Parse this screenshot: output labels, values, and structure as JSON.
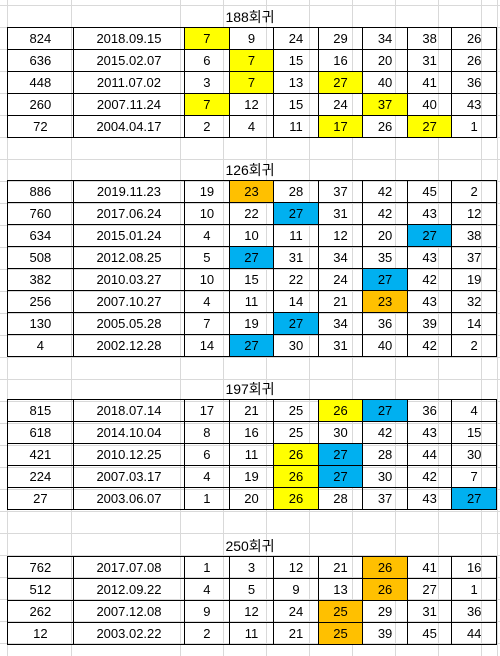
{
  "colors": {
    "yellow": "#ffff00",
    "orange": "#ffc000",
    "blue": "#00b0f0"
  },
  "blocks": [
    {
      "title": "188회귀",
      "rows": [
        {
          "round": "824",
          "date": "2018.09.15",
          "nums": [
            "7",
            "9",
            "24",
            "29",
            "34",
            "38",
            "26"
          ],
          "hl": [
            "yellow",
            "",
            "",
            "",
            "",
            "",
            ""
          ]
        },
        {
          "round": "636",
          "date": "2015.02.07",
          "nums": [
            "6",
            "7",
            "15",
            "16",
            "20",
            "31",
            "26"
          ],
          "hl": [
            "",
            "yellow",
            "",
            "",
            "",
            "",
            ""
          ]
        },
        {
          "round": "448",
          "date": "2011.07.02",
          "nums": [
            "3",
            "7",
            "13",
            "27",
            "40",
            "41",
            "36"
          ],
          "hl": [
            "",
            "yellow",
            "",
            "yellow",
            "",
            "",
            ""
          ]
        },
        {
          "round": "260",
          "date": "2007.11.24",
          "nums": [
            "7",
            "12",
            "15",
            "24",
            "37",
            "40",
            "43"
          ],
          "hl": [
            "yellow",
            "",
            "",
            "",
            "yellow",
            "",
            ""
          ]
        },
        {
          "round": "72",
          "date": "2004.04.17",
          "nums": [
            "2",
            "4",
            "11",
            "17",
            "26",
            "27",
            "1"
          ],
          "hl": [
            "",
            "",
            "",
            "yellow",
            "",
            "yellow",
            ""
          ]
        }
      ]
    },
    {
      "title": "126회귀",
      "rows": [
        {
          "round": "886",
          "date": "2019.11.23",
          "nums": [
            "19",
            "23",
            "28",
            "37",
            "42",
            "45",
            "2"
          ],
          "hl": [
            "",
            "orange",
            "",
            "",
            "",
            "",
            ""
          ]
        },
        {
          "round": "760",
          "date": "2017.06.24",
          "nums": [
            "10",
            "22",
            "27",
            "31",
            "42",
            "43",
            "12"
          ],
          "hl": [
            "",
            "",
            "blue",
            "",
            "",
            "",
            ""
          ]
        },
        {
          "round": "634",
          "date": "2015.01.24",
          "nums": [
            "4",
            "10",
            "11",
            "12",
            "20",
            "27",
            "38"
          ],
          "hl": [
            "",
            "",
            "",
            "",
            "",
            "blue",
            ""
          ]
        },
        {
          "round": "508",
          "date": "2012.08.25",
          "nums": [
            "5",
            "27",
            "31",
            "34",
            "35",
            "43",
            "37"
          ],
          "hl": [
            "",
            "blue",
            "",
            "",
            "",
            "",
            ""
          ]
        },
        {
          "round": "382",
          "date": "2010.03.27",
          "nums": [
            "10",
            "15",
            "22",
            "24",
            "27",
            "42",
            "19"
          ],
          "hl": [
            "",
            "",
            "",
            "",
            "blue",
            "",
            ""
          ]
        },
        {
          "round": "256",
          "date": "2007.10.27",
          "nums": [
            "4",
            "11",
            "14",
            "21",
            "23",
            "43",
            "32"
          ],
          "hl": [
            "",
            "",
            "",
            "",
            "orange",
            "",
            ""
          ]
        },
        {
          "round": "130",
          "date": "2005.05.28",
          "nums": [
            "7",
            "19",
            "27",
            "34",
            "36",
            "39",
            "14"
          ],
          "hl": [
            "",
            "",
            "blue",
            "",
            "",
            "",
            ""
          ]
        },
        {
          "round": "4",
          "date": "2002.12.28",
          "nums": [
            "14",
            "27",
            "30",
            "31",
            "40",
            "42",
            "2"
          ],
          "hl": [
            "",
            "blue",
            "",
            "",
            "",
            "",
            ""
          ]
        }
      ]
    },
    {
      "title": "197회귀",
      "rows": [
        {
          "round": "815",
          "date": "2018.07.14",
          "nums": [
            "17",
            "21",
            "25",
            "26",
            "27",
            "36",
            "4"
          ],
          "hl": [
            "",
            "",
            "",
            "yellow",
            "blue",
            "",
            ""
          ]
        },
        {
          "round": "618",
          "date": "2014.10.04",
          "nums": [
            "8",
            "16",
            "25",
            "30",
            "42",
            "43",
            "15"
          ],
          "hl": [
            "",
            "",
            "",
            "",
            "",
            "",
            ""
          ]
        },
        {
          "round": "421",
          "date": "2010.12.25",
          "nums": [
            "6",
            "11",
            "26",
            "27",
            "28",
            "44",
            "30"
          ],
          "hl": [
            "",
            "",
            "yellow",
            "blue",
            "",
            "",
            ""
          ]
        },
        {
          "round": "224",
          "date": "2007.03.17",
          "nums": [
            "4",
            "19",
            "26",
            "27",
            "30",
            "42",
            "7"
          ],
          "hl": [
            "",
            "",
            "yellow",
            "blue",
            "",
            "",
            ""
          ]
        },
        {
          "round": "27",
          "date": "2003.06.07",
          "nums": [
            "1",
            "20",
            "26",
            "28",
            "37",
            "43",
            "27"
          ],
          "hl": [
            "",
            "",
            "yellow",
            "",
            "",
            "",
            "blue"
          ]
        }
      ]
    },
    {
      "title": "250회귀",
      "rows": [
        {
          "round": "762",
          "date": "2017.07.08",
          "nums": [
            "1",
            "3",
            "12",
            "21",
            "26",
            "41",
            "16"
          ],
          "hl": [
            "",
            "",
            "",
            "",
            "orange",
            "",
            ""
          ]
        },
        {
          "round": "512",
          "date": "2012.09.22",
          "nums": [
            "4",
            "5",
            "9",
            "13",
            "26",
            "27",
            "1"
          ],
          "hl": [
            "",
            "",
            "",
            "",
            "orange",
            "",
            ""
          ]
        },
        {
          "round": "262",
          "date": "2007.12.08",
          "nums": [
            "9",
            "12",
            "24",
            "25",
            "29",
            "31",
            "36"
          ],
          "hl": [
            "",
            "",
            "",
            "orange",
            "",
            "",
            ""
          ]
        },
        {
          "round": "12",
          "date": "2003.02.22",
          "nums": [
            "2",
            "11",
            "21",
            "25",
            "39",
            "45",
            "44"
          ],
          "hl": [
            "",
            "",
            "",
            "orange",
            "",
            "",
            ""
          ]
        }
      ]
    }
  ]
}
